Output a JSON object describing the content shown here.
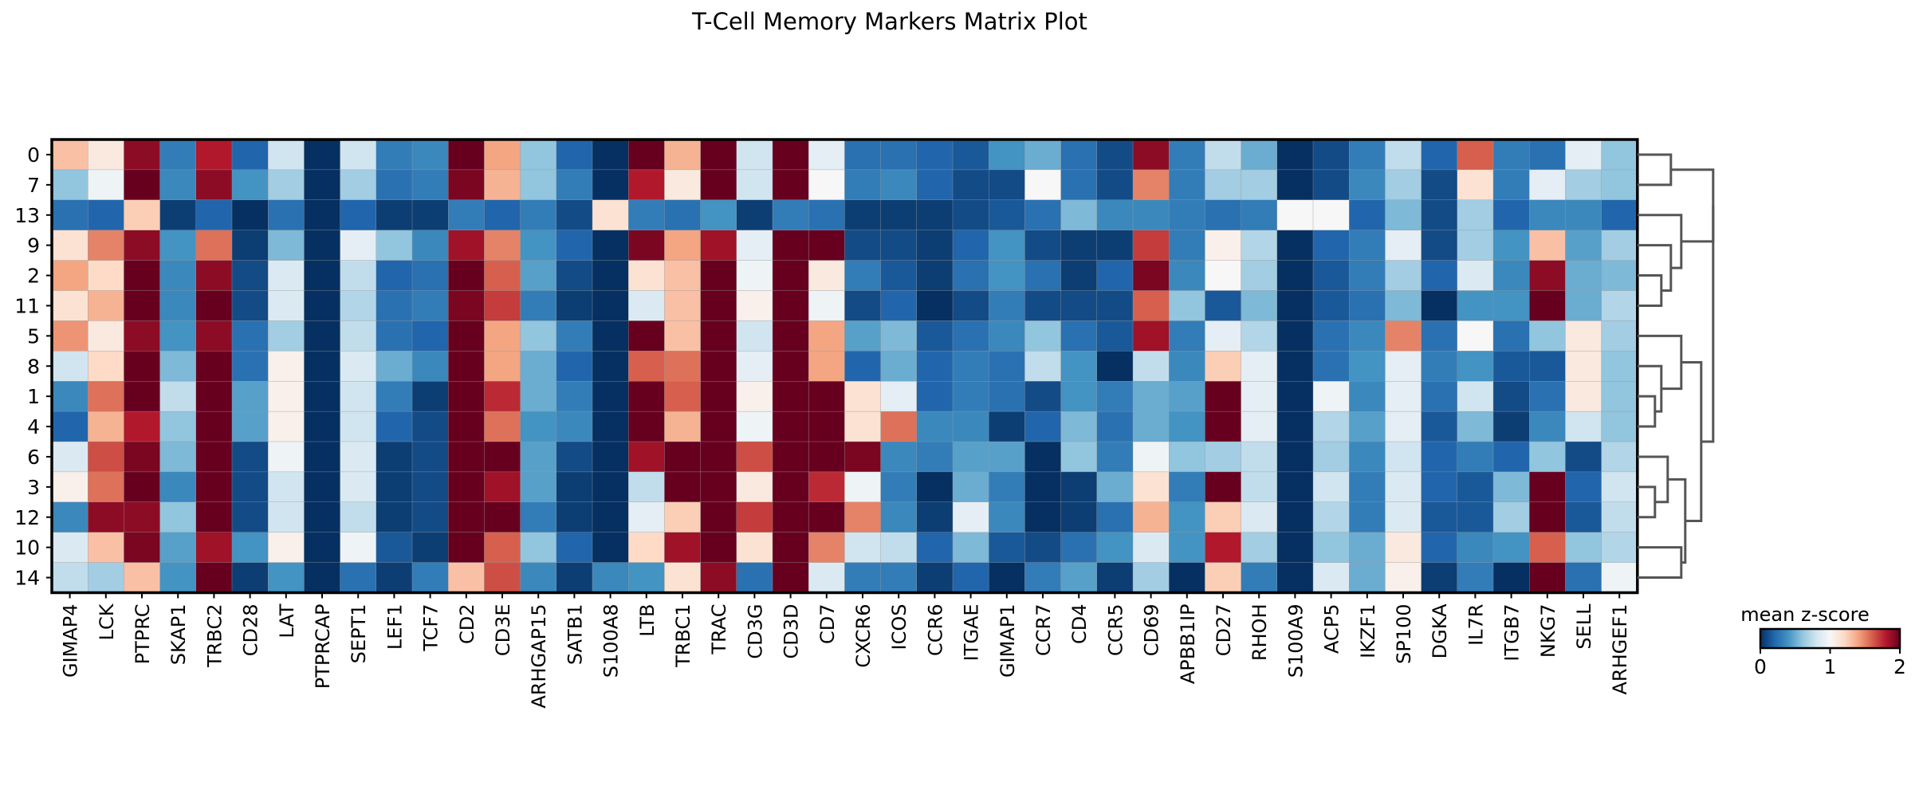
{
  "chart_data": {
    "type": "heatmap",
    "title": "T-Cell Memory Markers Matrix Plot",
    "rows": [
      "0",
      "7",
      "13",
      "9",
      "2",
      "11",
      "5",
      "8",
      "1",
      "4",
      "6",
      "3",
      "12",
      "10",
      "14"
    ],
    "columns": [
      "GIMAP4",
      "LCK",
      "PTPRC",
      "SKAP1",
      "TRBC2",
      "CD28",
      "LAT",
      "PTPRCAP",
      "SEPT1",
      "LEF1",
      "TCF7",
      "CD2",
      "CD3E",
      "ARHGAP15",
      "SATB1",
      "S100A8",
      "LTB",
      "TRBC1",
      "TRAC",
      "CD3G",
      "CD3D",
      "CD7",
      "CXCR6",
      "ICOS",
      "CCR6",
      "ITGAE",
      "GIMAP1",
      "CCR7",
      "CD4",
      "CCR5",
      "CD69",
      "APBB1IP",
      "CD27",
      "RHOH",
      "S100A9",
      "ACP5",
      "IKZF1",
      "SP100",
      "DGKA",
      "IL7R",
      "ITGB7",
      "NKG7",
      "SELL",
      "ARHGEF1"
    ],
    "values": [
      [
        1.3,
        1.1,
        1.9,
        0.3,
        1.8,
        0.2,
        0.8,
        0.0,
        0.8,
        0.3,
        0.35,
        2.0,
        1.4,
        0.6,
        0.2,
        0.0,
        2.0,
        1.35,
        2.0,
        0.8,
        2.0,
        0.9,
        0.25,
        0.25,
        0.2,
        0.15,
        0.4,
        0.5,
        0.25,
        0.1,
        1.9,
        0.3,
        0.75,
        0.5,
        0.0,
        0.1,
        0.3,
        0.75,
        0.2,
        1.6,
        0.3,
        0.25,
        0.9,
        0.6
      ],
      [
        0.6,
        0.95,
        2.0,
        0.35,
        1.9,
        0.4,
        0.65,
        0.0,
        0.65,
        0.25,
        0.3,
        1.95,
        1.35,
        0.6,
        0.3,
        0.0,
        1.8,
        1.1,
        2.0,
        0.8,
        2.0,
        1.0,
        0.3,
        0.35,
        0.2,
        0.1,
        0.1,
        1.0,
        0.25,
        0.1,
        1.5,
        0.3,
        0.65,
        0.65,
        0.0,
        0.1,
        0.35,
        0.65,
        0.1,
        1.15,
        0.3,
        0.9,
        0.65,
        0.6
      ],
      [
        0.25,
        0.2,
        1.25,
        0.05,
        0.2,
        0.0,
        0.25,
        0.0,
        0.2,
        0.05,
        0.05,
        0.3,
        0.2,
        0.3,
        0.1,
        1.15,
        0.3,
        0.25,
        0.4,
        0.05,
        0.3,
        0.25,
        0.05,
        0.05,
        0.05,
        0.1,
        0.15,
        0.25,
        0.55,
        0.35,
        0.35,
        0.3,
        0.25,
        0.3,
        1.0,
        1.0,
        0.2,
        0.55,
        0.1,
        0.65,
        0.2,
        0.35,
        0.35,
        0.2
      ],
      [
        1.15,
        1.5,
        1.9,
        0.4,
        1.55,
        0.05,
        0.55,
        0.0,
        0.9,
        0.6,
        0.35,
        1.85,
        1.5,
        0.4,
        0.2,
        0.0,
        1.95,
        1.4,
        1.85,
        0.9,
        2.0,
        2.0,
        0.1,
        0.1,
        0.05,
        0.2,
        0.4,
        0.1,
        0.05,
        0.05,
        1.7,
        0.3,
        1.05,
        0.7,
        0.0,
        0.2,
        0.3,
        0.9,
        0.1,
        0.65,
        0.4,
        1.3,
        0.45,
        0.65
      ],
      [
        1.4,
        1.2,
        2.0,
        0.35,
        1.9,
        0.1,
        0.85,
        0.0,
        0.75,
        0.2,
        0.25,
        2.0,
        1.6,
        0.45,
        0.1,
        0.0,
        1.15,
        1.3,
        2.0,
        0.95,
        2.0,
        1.1,
        0.3,
        0.15,
        0.05,
        0.25,
        0.4,
        0.25,
        0.05,
        0.2,
        1.95,
        0.35,
        1.0,
        0.65,
        0.0,
        0.15,
        0.3,
        0.65,
        0.2,
        0.85,
        0.35,
        1.9,
        0.5,
        0.55
      ],
      [
        1.15,
        1.35,
        2.0,
        0.35,
        2.0,
        0.1,
        0.85,
        0.0,
        0.7,
        0.25,
        0.3,
        1.95,
        1.7,
        0.3,
        0.05,
        0.0,
        0.85,
        1.3,
        2.0,
        1.05,
        2.0,
        0.95,
        0.1,
        0.2,
        0.0,
        0.1,
        0.3,
        0.1,
        0.1,
        0.1,
        1.6,
        0.6,
        0.15,
        0.55,
        0.0,
        0.15,
        0.25,
        0.55,
        0.0,
        0.4,
        0.4,
        2.0,
        0.5,
        0.7
      ],
      [
        1.45,
        1.1,
        1.9,
        0.4,
        1.9,
        0.25,
        0.65,
        0.0,
        0.75,
        0.25,
        0.2,
        2.0,
        1.4,
        0.6,
        0.3,
        0.0,
        2.0,
        1.3,
        2.0,
        0.8,
        2.0,
        1.4,
        0.45,
        0.55,
        0.15,
        0.25,
        0.35,
        0.6,
        0.25,
        0.15,
        1.85,
        0.3,
        0.9,
        0.7,
        0.0,
        0.25,
        0.35,
        1.5,
        0.25,
        1.0,
        0.25,
        0.6,
        1.1,
        0.65
      ],
      [
        0.8,
        1.2,
        2.0,
        0.55,
        2.0,
        0.25,
        1.05,
        0.0,
        0.85,
        0.5,
        0.35,
        2.0,
        1.4,
        0.5,
        0.2,
        0.0,
        1.6,
        1.55,
        2.0,
        0.9,
        2.0,
        1.4,
        0.2,
        0.5,
        0.2,
        0.3,
        0.25,
        0.75,
        0.4,
        0.0,
        0.75,
        0.35,
        1.25,
        0.9,
        0.0,
        0.25,
        0.4,
        0.9,
        0.3,
        0.4,
        0.15,
        0.15,
        1.1,
        0.6
      ],
      [
        0.35,
        1.55,
        2.0,
        0.75,
        2.0,
        0.45,
        1.05,
        0.0,
        0.8,
        0.3,
        0.05,
        2.0,
        1.75,
        0.5,
        0.3,
        0.0,
        2.0,
        1.6,
        2.0,
        1.05,
        2.0,
        2.0,
        1.15,
        0.9,
        0.2,
        0.3,
        0.25,
        0.1,
        0.4,
        0.3,
        0.5,
        0.45,
        2.0,
        0.9,
        0.0,
        0.95,
        0.35,
        0.9,
        0.25,
        0.8,
        0.1,
        0.25,
        1.1,
        0.6
      ],
      [
        0.2,
        1.35,
        1.8,
        0.6,
        2.0,
        0.45,
        1.05,
        0.0,
        0.8,
        0.2,
        0.1,
        2.0,
        1.55,
        0.4,
        0.35,
        0.0,
        2.0,
        1.35,
        2.0,
        0.95,
        2.0,
        2.0,
        1.15,
        1.55,
        0.35,
        0.35,
        0.05,
        0.2,
        0.55,
        0.25,
        0.5,
        0.4,
        2.0,
        0.9,
        0.0,
        0.7,
        0.45,
        0.9,
        0.15,
        0.55,
        0.05,
        0.35,
        0.8,
        0.6
      ],
      [
        0.85,
        1.65,
        1.95,
        0.55,
        2.0,
        0.1,
        0.95,
        0.0,
        0.85,
        0.05,
        0.1,
        2.0,
        2.0,
        0.45,
        0.1,
        0.0,
        1.85,
        2.0,
        2.0,
        1.65,
        2.0,
        2.0,
        1.95,
        0.35,
        0.3,
        0.45,
        0.45,
        0.0,
        0.6,
        0.3,
        0.95,
        0.6,
        0.65,
        0.75,
        0.0,
        0.65,
        0.35,
        0.8,
        0.2,
        0.3,
        0.2,
        0.6,
        0.1,
        0.7
      ],
      [
        1.05,
        1.55,
        2.0,
        0.35,
        2.0,
        0.1,
        0.8,
        0.0,
        0.85,
        0.05,
        0.1,
        2.0,
        1.85,
        0.45,
        0.05,
        0.0,
        0.75,
        2.0,
        2.0,
        1.1,
        2.0,
        1.75,
        0.95,
        0.3,
        0.0,
        0.5,
        0.3,
        0.0,
        0.05,
        0.5,
        1.15,
        0.3,
        2.0,
        0.75,
        0.0,
        0.8,
        0.3,
        0.85,
        0.2,
        0.15,
        0.55,
        2.0,
        0.2,
        0.8
      ],
      [
        0.35,
        1.9,
        1.9,
        0.6,
        2.0,
        0.1,
        0.8,
        0.0,
        0.75,
        0.05,
        0.1,
        2.0,
        2.0,
        0.3,
        0.05,
        0.0,
        0.9,
        1.25,
        2.0,
        1.7,
        2.0,
        2.0,
        1.5,
        0.35,
        0.05,
        0.9,
        0.35,
        0.0,
        0.05,
        0.25,
        1.35,
        0.4,
        1.25,
        0.85,
        0.0,
        0.7,
        0.3,
        0.85,
        0.15,
        0.15,
        0.65,
        2.0,
        0.15,
        0.75
      ],
      [
        0.85,
        1.3,
        1.95,
        0.45,
        1.85,
        0.4,
        1.05,
        0.0,
        0.95,
        0.15,
        0.05,
        2.0,
        1.6,
        0.6,
        0.2,
        0.0,
        1.2,
        1.85,
        2.0,
        1.15,
        2.0,
        1.5,
        0.8,
        0.75,
        0.2,
        0.55,
        0.15,
        0.1,
        0.25,
        0.4,
        0.85,
        0.4,
        1.8,
        0.65,
        0.0,
        0.6,
        0.5,
        1.1,
        0.2,
        0.35,
        0.4,
        1.6,
        0.6,
        0.7
      ],
      [
        0.75,
        0.65,
        1.3,
        0.4,
        2.0,
        0.05,
        0.4,
        0.0,
        0.25,
        0.05,
        0.3,
        1.3,
        1.65,
        0.35,
        0.05,
        0.35,
        0.4,
        1.15,
        1.9,
        0.25,
        2.0,
        0.85,
        0.3,
        0.3,
        0.05,
        0.2,
        0.0,
        0.3,
        0.45,
        0.05,
        0.65,
        0.0,
        1.25,
        0.3,
        0.0,
        0.85,
        0.5,
        1.05,
        0.05,
        0.3,
        0.0,
        2.0,
        0.25,
        0.95
      ]
    ],
    "colorbar": {
      "label": "mean z-score",
      "range": [
        0,
        2
      ],
      "ticks": [
        "0",
        "1",
        "2"
      ]
    },
    "colormap": [
      "#053061",
      "#2166ac",
      "#4393c3",
      "#92c5de",
      "#d1e5f0",
      "#f7f7f7",
      "#fddbc7",
      "#f4a582",
      "#d6604d",
      "#b2182b",
      "#67001f"
    ],
    "dendrogram_side": "right"
  }
}
